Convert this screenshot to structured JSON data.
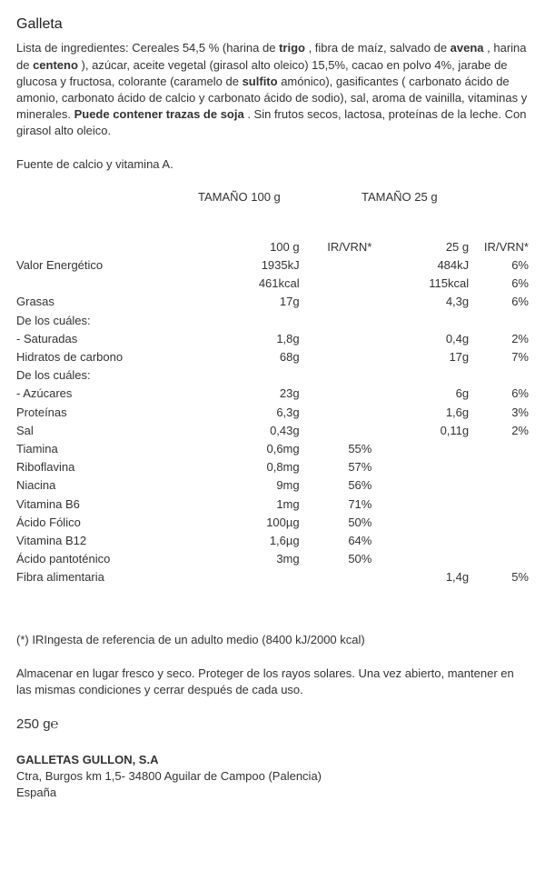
{
  "title": "Galleta",
  "ingredients": {
    "lead": "Lista de ingredientes: Cereales 54,5 % (harina de ",
    "b1": "trigo",
    "p1": " , fibra de maíz, salvado de ",
    "b2": "avena",
    "p2": " , harina de ",
    "b3": "centeno",
    "p3": " ), azúcar, aceite vegetal (girasol alto oleico) 15,5%, cacao en polvo 4%, jarabe de glucosa y fructosa, colorante (caramelo de ",
    "b4": "sulfito",
    "p4": " amónico), gasificantes ( carbonato ácido de amonio, carbonato ácido de calcio y carbonato ácido de sodio), sal, aroma de vainilla, vitaminas y minerales. ",
    "b5": "Puede contener trazas de soja",
    "p5": " . Sin frutos secos, lactosa, proteínas de la leche. Con girasol alto oleico."
  },
  "claim": "Fuente de calcio y vitamina A.",
  "servingHeader1": "TAMAÑO 100 g",
  "servingHeader2": "TAMAÑO 25 g",
  "colh": {
    "amt1": "100 g",
    "ir1": "IR/VRN*",
    "amt2": "25 g",
    "ir2": "IR/VRN*"
  },
  "rows": [
    {
      "label": "Valor Energético",
      "v1": "1935kJ",
      "i1": "",
      "v2": "484kJ",
      "i2": "6%"
    },
    {
      "label": "",
      "v1": "461kcal",
      "i1": "",
      "v2": "115kcal",
      "i2": "6%"
    },
    {
      "label": "Grasas",
      "v1": "17g",
      "i1": "",
      "v2": "4,3g",
      "i2": "6%"
    },
    {
      "label": " De los cuáles:",
      "v1": "",
      "i1": "",
      "v2": "",
      "i2": ""
    },
    {
      "label": " - Saturadas",
      "v1": "1,8g",
      "i1": "",
      "v2": "0,4g",
      "i2": "2%"
    },
    {
      "label": "Hidratos de carbono",
      "v1": "68g",
      "i1": "",
      "v2": "17g",
      "i2": "7%"
    },
    {
      "label": " De los cuáles:",
      "v1": "",
      "i1": "",
      "v2": "",
      "i2": ""
    },
    {
      "label": " - Azúcares",
      "v1": "23g",
      "i1": "",
      "v2": "6g",
      "i2": "6%"
    },
    {
      "label": "Proteínas",
      "v1": "6,3g",
      "i1": "",
      "v2": "1,6g",
      "i2": "3%"
    },
    {
      "label": "Sal",
      "v1": "0,43g",
      "i1": "",
      "v2": "0,11g",
      "i2": "2%"
    },
    {
      "label": "Tiamina",
      "v1": "0,6mg",
      "i1": "55%",
      "v2": "",
      "i2": ""
    },
    {
      "label": "Riboflavina",
      "v1": "0,8mg",
      "i1": "57%",
      "v2": "",
      "i2": ""
    },
    {
      "label": "Niacina",
      "v1": "9mg",
      "i1": "56%",
      "v2": "",
      "i2": ""
    },
    {
      "label": "Vitamina B6",
      "v1": "1mg",
      "i1": "71%",
      "v2": "",
      "i2": ""
    },
    {
      "label": "Ácido Fólico",
      "v1": "100µg",
      "i1": "50%",
      "v2": "",
      "i2": ""
    },
    {
      "label": "Vitamina B12",
      "v1": "1,6µg",
      "i1": "64%",
      "v2": "",
      "i2": ""
    },
    {
      "label": "Ácido pantoténico",
      "v1": "3mg",
      "i1": "50%",
      "v2": "",
      "i2": ""
    },
    {
      "label": "Fibra alimentaria",
      "v1": "",
      "i1": "",
      "v2": "1,4g",
      "i2": "5%"
    }
  ],
  "footnote": "(*) IRIngesta de referencia de un adulto medio (8400 kJ/2000 kcal)",
  "storage": "Almacenar en lugar fresco y seco. Proteger de los rayos solares. Una vez abierto, mantener en las mismas condiciones y cerrar después de cada uso.",
  "weight": "250 g",
  "estimated_e": "℮",
  "manufacturer": {
    "name": "GALLETAS GULLON, S.A",
    "addr": "Ctra, Burgos km 1,5- 34800 Aguilar de Campoo (Palencia)",
    "country": "España"
  }
}
